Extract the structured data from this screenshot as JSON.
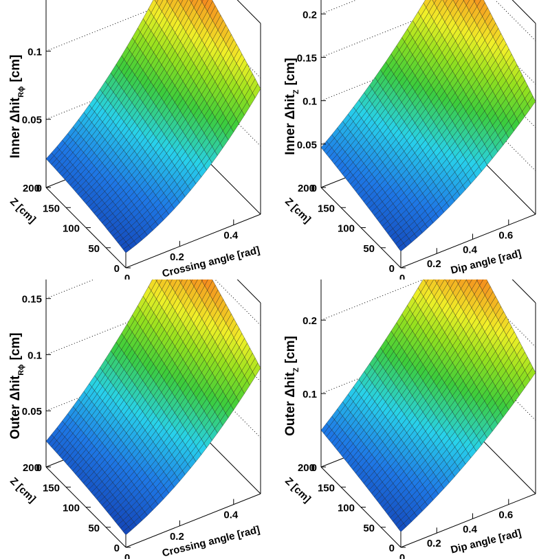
{
  "chart_data": [
    {
      "type": "surface",
      "xlabel": "Crossing angle [rad]",
      "ylabel": "Z [cm]",
      "zlabel": "Inner Δhit",
      "zlabel_sub": "Rϕ",
      "zlabel_unit": "[cm]",
      "xlim": [
        0,
        0.5
      ],
      "ylim": [
        0,
        200
      ],
      "zlim": [
        0,
        0.14
      ],
      "xticks": [
        "0",
        "0.2",
        "0.4"
      ],
      "yticks": [
        "0",
        "50",
        "100",
        "150",
        "200"
      ],
      "zticks": [
        "0",
        "0.05",
        "0.1"
      ],
      "corner_values": {
        "x0_z0": 0.011,
        "x0_z200": 0.021,
        "x05_z0": 0.092,
        "x05_z200": 0.138
      }
    },
    {
      "type": "surface",
      "xlabel": "Dip angle [rad]",
      "ylabel": "Z [cm]",
      "zlabel": "Inner Δhit",
      "zlabel_sub": "Z",
      "zlabel_unit": "[cm]",
      "xlim": [
        0,
        0.75
      ],
      "ylim": [
        0,
        200
      ],
      "zlim": [
        0,
        0.22
      ],
      "xticks": [
        "0",
        "0.2",
        "0.4",
        "0.6"
      ],
      "yticks": [
        "0",
        "50",
        "100",
        "150",
        "200"
      ],
      "zticks": [
        "0",
        "0.05",
        "0.1",
        "0.15",
        "0.2"
      ],
      "corner_values": {
        "x0_z0": 0.019,
        "x0_z200": 0.046,
        "x075_z0": 0.13,
        "x075_z200": 0.215
      }
    },
    {
      "type": "surface",
      "xlabel": "Crossing angle [rad]",
      "ylabel": "Z [cm]",
      "zlabel": "Outer Δhit",
      "zlabel_sub": "Rϕ",
      "zlabel_unit": "[cm]",
      "xlim": [
        0,
        0.5
      ],
      "ylim": [
        0,
        200
      ],
      "zlim": [
        0,
        0.17
      ],
      "xticks": [
        "0",
        "0.2",
        "0.4"
      ],
      "yticks": [
        "0",
        "50",
        "100",
        "150",
        "200"
      ],
      "zticks": [
        "0",
        "0.05",
        "0.1",
        "0.15"
      ],
      "corner_values": {
        "x0_z0": 0.011,
        "x0_z200": 0.023,
        "x05_z0": 0.112,
        "x05_z200": 0.168
      }
    },
    {
      "type": "surface",
      "xlabel": "Dip angle [rad]",
      "ylabel": "Z [cm]",
      "zlabel": "Outer Δhit",
      "zlabel_sub": "Z",
      "zlabel_unit": "[cm]",
      "xlim": [
        0,
        0.75
      ],
      "ylim": [
        0,
        200
      ],
      "zlim": [
        0,
        0.26
      ],
      "xticks": [
        "0",
        "0.2",
        "0.4",
        "0.6"
      ],
      "yticks": [
        "0",
        "50",
        "100",
        "150",
        "200"
      ],
      "zticks": [
        "0",
        "0.1",
        "0.2"
      ],
      "corner_values": {
        "x0_z0": 0.021,
        "x0_z200": 0.05,
        "x075_z0": 0.165,
        "x075_z200": 0.26
      }
    }
  ]
}
